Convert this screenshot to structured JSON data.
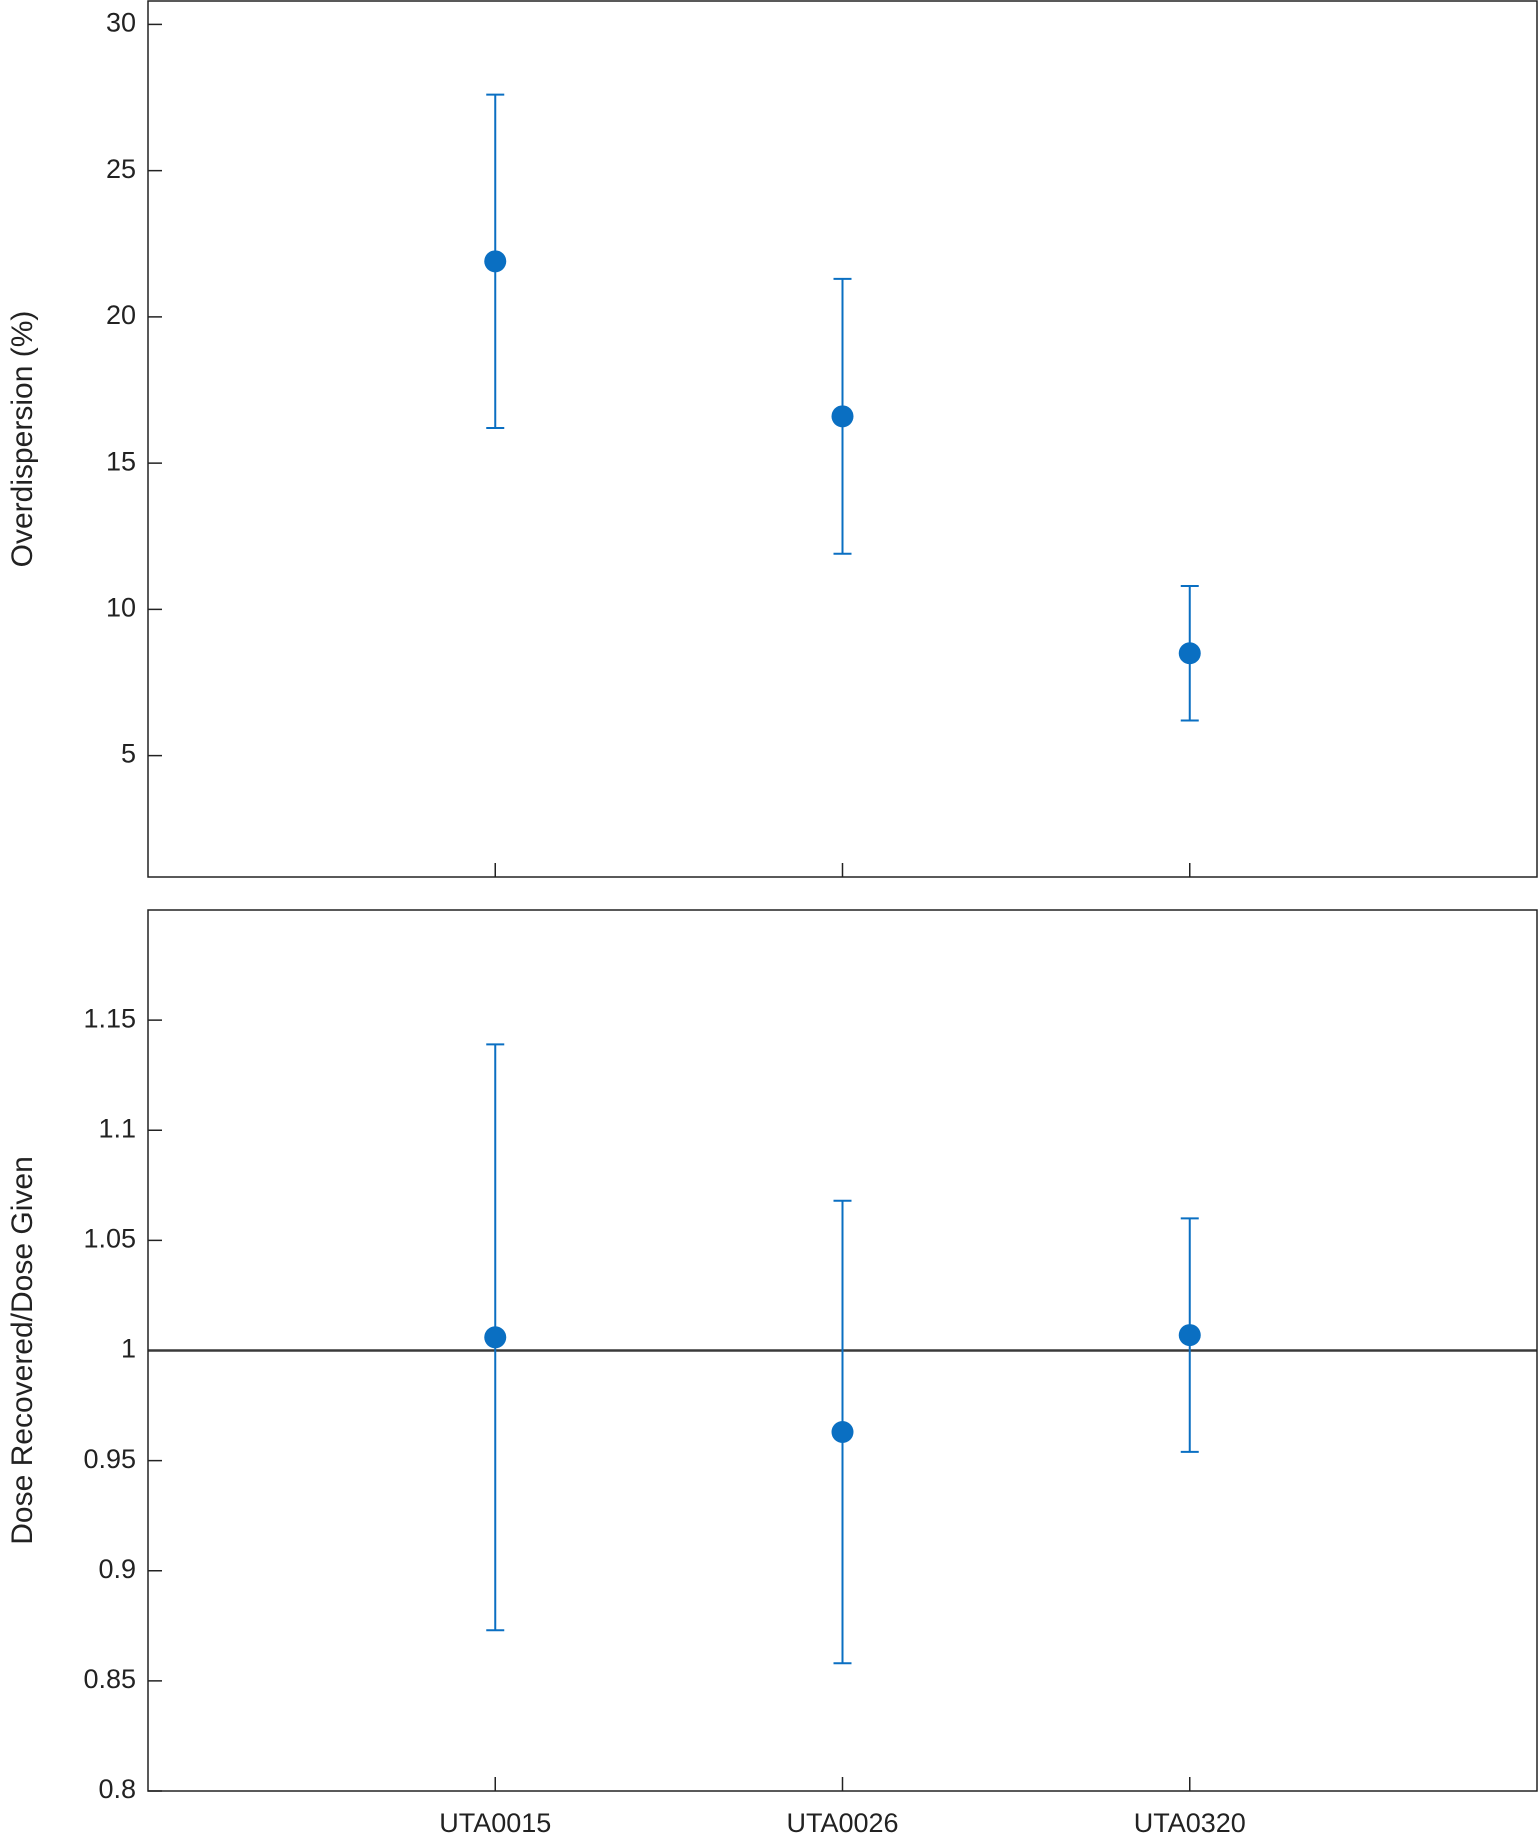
{
  "chart_data": [
    {
      "type": "errorbar",
      "ylabel": "Overdispersion (%)",
      "values": [
        21.9,
        16.6,
        8.5
      ],
      "lower": [
        16.2,
        11.9,
        6.2
      ],
      "upper": [
        27.6,
        21.3,
        10.8
      ],
      "color": "#0a6fc2",
      "ylim": [
        0.85,
        30.8
      ],
      "yticks": [
        5,
        10,
        15,
        20,
        25,
        30
      ]
    },
    {
      "type": "errorbar",
      "ylabel": "Dose Recovered/Dose Given",
      "categories": [
        "UTA0015",
        "UTA0026",
        "UTA0320"
      ],
      "values": [
        1.006,
        0.963,
        1.007
      ],
      "lower": [
        0.873,
        0.858,
        0.954
      ],
      "upper": [
        1.139,
        1.068,
        1.06
      ],
      "color": "#0a6fc2",
      "ylim": [
        0.8,
        1.2
      ],
      "yticks": [
        0.8,
        0.85,
        0.9,
        0.95,
        1,
        1.05,
        1.1,
        1.15
      ],
      "hline": 1,
      "hline_color": "#3a3a3a"
    }
  ]
}
